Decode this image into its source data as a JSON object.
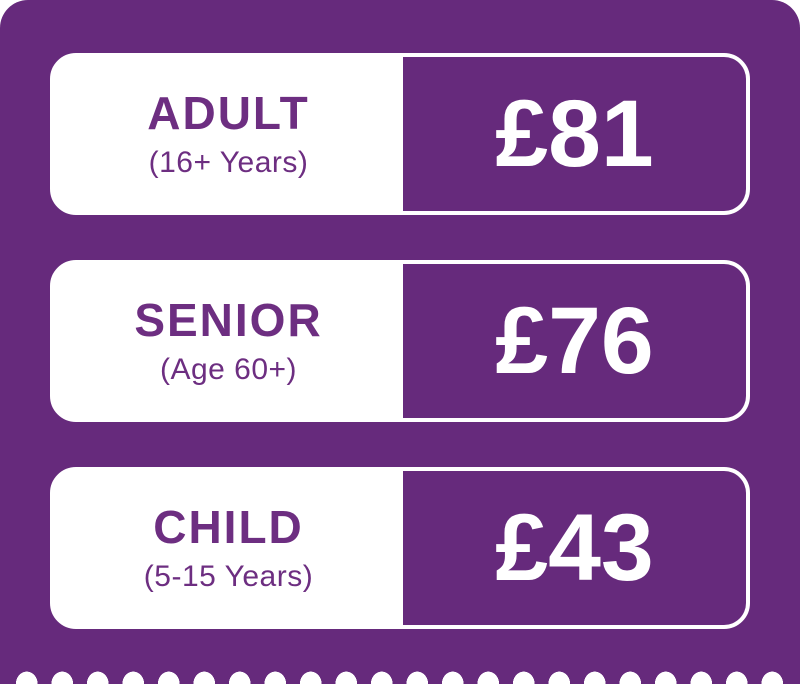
{
  "colors": {
    "purple_bg": "#662a7c",
    "label_text": "#6d2e81",
    "price_text": "#ffffff",
    "card_bg": "#ffffff"
  },
  "tiers": [
    {
      "name": "ADULT",
      "age_range": "(16+ Years)",
      "price": "£81"
    },
    {
      "name": "SENIOR",
      "age_range": "(Age 60+)",
      "price": "£76"
    },
    {
      "name": "CHILD",
      "age_range": "(5-15 Years)",
      "price": "£43"
    }
  ]
}
